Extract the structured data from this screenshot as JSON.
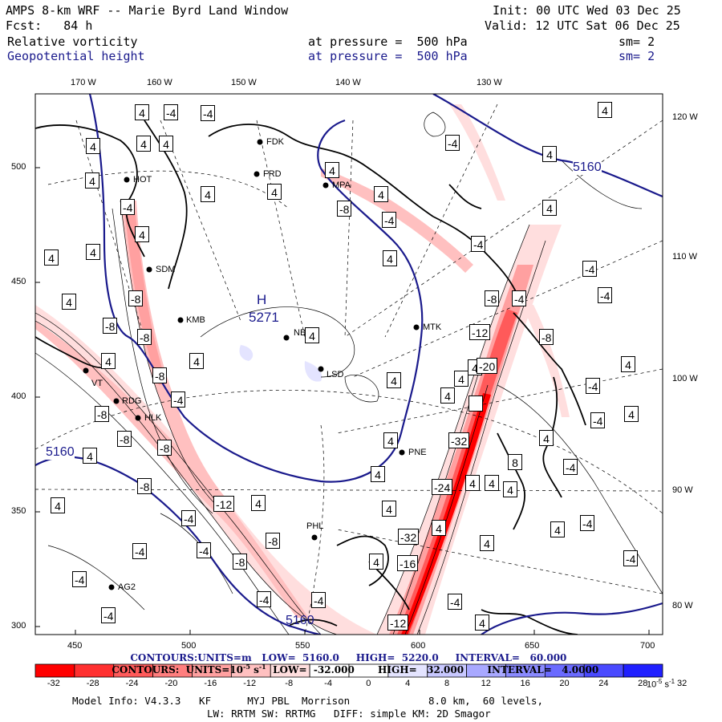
{
  "header": {
    "title": "AMPS 8-km WRF -- Marie Byrd Land Window",
    "init": "Init: 00 UTC Wed 03 Dec 25",
    "fcst": "Fcst:   84 h",
    "valid": "Valid: 12 UTC Sat 06 Dec 25",
    "field1": "Relative vorticity",
    "field1_level": "at pressure =  500 hPa",
    "field1_sm": "sm= 2",
    "field2": "Geopotential height",
    "field2_level": "at pressure =  500 hPa",
    "field2_sm": "sm= 2"
  },
  "axes": {
    "top_lon": [
      "170 W",
      "160 W",
      "150 W",
      "140 W",
      "130 W"
    ],
    "right_lon": [
      "120 W",
      "110 W",
      "100 W",
      "90 W",
      "80 W"
    ],
    "left_y": [
      "500",
      "450",
      "400",
      "350",
      "300"
    ],
    "bottom_x": [
      "450",
      "500",
      "550",
      "600",
      "650",
      "700"
    ]
  },
  "stations": [
    "FDK",
    "FRD",
    "MPA",
    "HOT",
    "SDM",
    "KMB",
    "NBL",
    "MTK",
    "LSD",
    "VT",
    "RDG",
    "HLK",
    "PNE",
    "PHL",
    "AG2"
  ],
  "map_labels": {
    "high_letter": "H",
    "high_value": "5271",
    "contour_5160_a": "5160",
    "contour_5160_b": "5160",
    "contour_5160_c": "5160"
  },
  "vort_labels": [
    "4",
    "-4",
    "-8",
    "-12",
    "-16",
    "-20",
    "-24",
    "-32",
    "8"
  ],
  "contours_height": {
    "label": "CONTOURS:",
    "units": "UNITS=m",
    "low": "LOW=  5160.0",
    "high": "HIGH=  5220.0",
    "interval": "INTERVAL=   60.000"
  },
  "contours_vort": {
    "label": "CONTOURS:",
    "units": "UNITS=10",
    "units_exp": "-5",
    "units_tail": "s",
    "units_tail_exp": "-1",
    "low": "LOW=  -32.000",
    "high": "HIGH=   32.000",
    "interval": "INTERVAL=   4.0000"
  },
  "colorbar": {
    "ticks": [
      "-32",
      "-28",
      "-24",
      "-20",
      "-16",
      "-12",
      "-8",
      "-4",
      "0",
      "4",
      "8",
      "12",
      "16",
      "20",
      "24",
      "28",
      "32"
    ],
    "units": "10",
    "units_exp": "-5",
    "units_tail": "s",
    "units_tail_exp": "-1",
    "colors": [
      "#ff0000",
      "#ff3030",
      "#ff5a5a",
      "#ff7e7e",
      "#ffa0a0",
      "#ffc0c0",
      "#ffdede",
      "#ffffff",
      "#ffffff",
      "#e4e4ff",
      "#c8c8ff",
      "#a8a8ff",
      "#8a8aff",
      "#6a6aff",
      "#4a4aff",
      "#2020ff"
    ]
  },
  "footer": {
    "model": "Model Info: V4.3.3   KF      MYJ PBL  Morrison             8.0 km,  60 levels,",
    "physics": "LW: RRTM SW: RRTMG   DIFF: simple KM: 2D Smagor"
  }
}
